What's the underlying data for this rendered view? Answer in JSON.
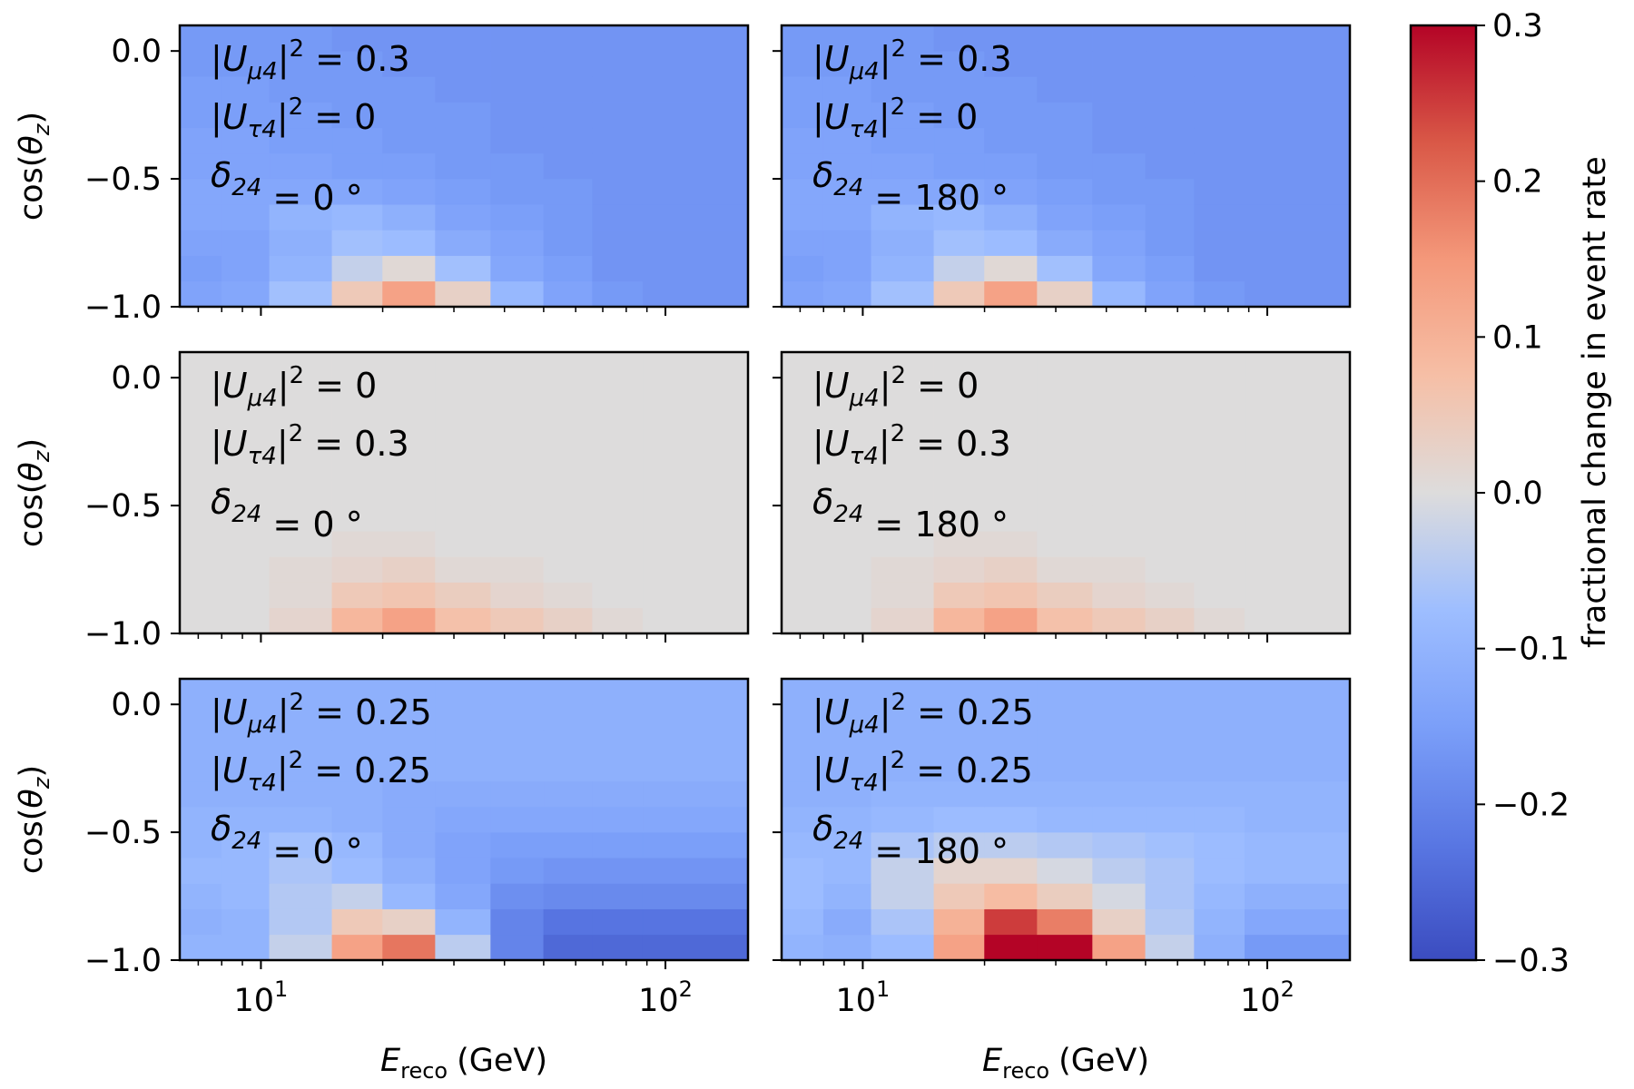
{
  "chart_data": {
    "type": "heatmap",
    "title": "",
    "colormap": "coolwarm",
    "x_axis": {
      "label_main": "E",
      "label_sub": "reco",
      "label_unit": "(GeV)",
      "scale": "log",
      "range": [
        6.3,
        160
      ],
      "tick_labels": [
        {
          "base": "10",
          "exp": "1",
          "value": 10
        },
        {
          "base": "10",
          "exp": "2",
          "value": 100
        }
      ],
      "bin_edges": [
        6.31,
        8.0,
        10.5,
        15.0,
        20.0,
        27.0,
        37.0,
        50.0,
        66.0,
        88.0,
        160.0
      ]
    },
    "y_axis": {
      "label": "cos(θz)",
      "label_text": "cos(",
      "label_theta": "θ",
      "label_z": "z",
      "label_close": ")",
      "range": [
        -1.0,
        0.1
      ],
      "tick_labels": [
        "0.0",
        "−0.5",
        "−1.0"
      ],
      "tick_values": [
        0.0,
        -0.5,
        -1.0
      ],
      "bin_edges": [
        -1.0,
        -0.9,
        -0.8,
        -0.7,
        -0.6,
        -0.5,
        -0.4,
        -0.3,
        -0.2,
        -0.1,
        0.0,
        0.1
      ]
    },
    "colorbar": {
      "label": "fractional change in event rate",
      "range": [
        -0.3,
        0.3
      ],
      "tick_values": [
        0.3,
        0.2,
        0.1,
        0.0,
        -0.1,
        -0.2,
        -0.3
      ],
      "tick_labels": [
        "0.3",
        "0.2",
        "0.1",
        "0.0",
        "−0.1",
        "−0.2",
        "−0.3"
      ]
    },
    "panels": [
      {
        "id": "row1-left",
        "lines": [
          [
            "|U",
            "μ4",
            "|",
            "2",
            " = 0.3"
          ],
          [
            "|U",
            "τ4",
            "|",
            "2",
            " = 0"
          ],
          [
            "δ",
            "24",
            "",
            "",
            " = 0 °"
          ]
        ],
        "rows_bottom_to_top": [
          [
            -0.14,
            -0.13,
            -0.07,
            0.05,
            0.13,
            0.03,
            -0.09,
            -0.14,
            -0.16,
            -0.17
          ],
          [
            -0.15,
            -0.14,
            -0.1,
            -0.03,
            0.01,
            -0.07,
            -0.13,
            -0.15,
            -0.17,
            -0.17
          ],
          [
            -0.14,
            -0.14,
            -0.11,
            -0.07,
            -0.08,
            -0.12,
            -0.14,
            -0.16,
            -0.17,
            -0.17
          ],
          [
            -0.13,
            -0.13,
            -0.1,
            -0.09,
            -0.11,
            -0.14,
            -0.15,
            -0.16,
            -0.17,
            -0.17
          ],
          [
            -0.13,
            -0.13,
            -0.13,
            -0.13,
            -0.14,
            -0.15,
            -0.16,
            -0.16,
            -0.17,
            -0.17
          ],
          [
            -0.14,
            -0.14,
            -0.14,
            -0.15,
            -0.15,
            -0.16,
            -0.16,
            -0.17,
            -0.17,
            -0.17
          ],
          [
            -0.14,
            -0.14,
            -0.15,
            -0.15,
            -0.16,
            -0.16,
            -0.17,
            -0.17,
            -0.17,
            -0.17
          ],
          [
            -0.15,
            -0.15,
            -0.15,
            -0.16,
            -0.16,
            -0.16,
            -0.17,
            -0.17,
            -0.17,
            -0.17
          ],
          [
            -0.15,
            -0.15,
            -0.16,
            -0.16,
            -0.16,
            -0.17,
            -0.17,
            -0.17,
            -0.17,
            -0.17
          ],
          [
            -0.16,
            -0.16,
            -0.16,
            -0.16,
            -0.17,
            -0.17,
            -0.17,
            -0.17,
            -0.17,
            -0.17
          ],
          [
            -0.16,
            -0.16,
            -0.16,
            -0.17,
            -0.17,
            -0.17,
            -0.17,
            -0.17,
            -0.17,
            -0.17
          ]
        ]
      },
      {
        "id": "row1-right",
        "lines": [
          [
            "|U",
            "μ4",
            "|",
            "2",
            " = 0.3"
          ],
          [
            "|U",
            "τ4",
            "|",
            "2",
            " = 0"
          ],
          [
            "δ",
            "24",
            "",
            "",
            " = 180 °"
          ]
        ],
        "rows_bottom_to_top": [
          [
            -0.14,
            -0.13,
            -0.07,
            0.05,
            0.13,
            0.03,
            -0.09,
            -0.14,
            -0.16,
            -0.17
          ],
          [
            -0.15,
            -0.14,
            -0.1,
            -0.03,
            0.01,
            -0.07,
            -0.13,
            -0.15,
            -0.17,
            -0.17
          ],
          [
            -0.14,
            -0.14,
            -0.11,
            -0.07,
            -0.08,
            -0.12,
            -0.14,
            -0.16,
            -0.17,
            -0.17
          ],
          [
            -0.13,
            -0.13,
            -0.1,
            -0.09,
            -0.11,
            -0.14,
            -0.15,
            -0.16,
            -0.17,
            -0.17
          ],
          [
            -0.13,
            -0.13,
            -0.13,
            -0.13,
            -0.14,
            -0.15,
            -0.16,
            -0.16,
            -0.17,
            -0.17
          ],
          [
            -0.14,
            -0.14,
            -0.14,
            -0.15,
            -0.15,
            -0.16,
            -0.16,
            -0.17,
            -0.17,
            -0.17
          ],
          [
            -0.14,
            -0.14,
            -0.15,
            -0.15,
            -0.16,
            -0.16,
            -0.17,
            -0.17,
            -0.17,
            -0.17
          ],
          [
            -0.15,
            -0.15,
            -0.15,
            -0.16,
            -0.16,
            -0.16,
            -0.17,
            -0.17,
            -0.17,
            -0.17
          ],
          [
            -0.15,
            -0.15,
            -0.16,
            -0.16,
            -0.16,
            -0.17,
            -0.17,
            -0.17,
            -0.17,
            -0.17
          ],
          [
            -0.16,
            -0.16,
            -0.16,
            -0.16,
            -0.17,
            -0.17,
            -0.17,
            -0.17,
            -0.17,
            -0.17
          ],
          [
            -0.16,
            -0.16,
            -0.16,
            -0.17,
            -0.17,
            -0.17,
            -0.17,
            -0.17,
            -0.17,
            -0.17
          ]
        ]
      },
      {
        "id": "row2-left",
        "lines": [
          [
            "|U",
            "μ4",
            "|",
            "2",
            " = 0"
          ],
          [
            "|U",
            "τ4",
            "|",
            "2",
            " = 0.3"
          ],
          [
            "δ",
            "24",
            "",
            "",
            " = 0 °"
          ]
        ],
        "rows_bottom_to_top": [
          [
            0.0,
            0.0,
            0.02,
            0.09,
            0.13,
            0.07,
            0.05,
            0.03,
            0.01,
            0.0
          ],
          [
            0.0,
            0.0,
            0.01,
            0.05,
            0.06,
            0.04,
            0.02,
            0.01,
            0.0,
            0.0
          ],
          [
            0.0,
            0.0,
            0.01,
            0.02,
            0.03,
            0.01,
            0.01,
            0.0,
            0.0,
            0.0
          ],
          [
            0.0,
            0.0,
            0.0,
            0.01,
            0.01,
            0.0,
            0.0,
            0.0,
            0.0,
            0.0
          ],
          [
            0.0,
            0.0,
            0.0,
            0.0,
            0.0,
            0.0,
            0.0,
            0.0,
            0.0,
            0.0
          ],
          [
            0.0,
            0.0,
            0.0,
            0.0,
            0.0,
            0.0,
            0.0,
            0.0,
            0.0,
            0.0
          ],
          [
            0.0,
            0.0,
            0.0,
            0.0,
            0.0,
            0.0,
            0.0,
            0.0,
            0.0,
            0.0
          ],
          [
            0.0,
            0.0,
            0.0,
            0.0,
            0.0,
            0.0,
            0.0,
            0.0,
            0.0,
            0.0
          ],
          [
            0.0,
            0.0,
            0.0,
            0.0,
            0.0,
            0.0,
            0.0,
            0.0,
            0.0,
            0.0
          ],
          [
            0.0,
            0.0,
            0.0,
            0.0,
            0.0,
            0.0,
            0.0,
            0.0,
            0.0,
            0.0
          ],
          [
            0.0,
            0.0,
            0.0,
            0.0,
            0.0,
            0.0,
            0.0,
            0.0,
            0.0,
            0.0
          ]
        ]
      },
      {
        "id": "row2-right",
        "lines": [
          [
            "|U",
            "μ4",
            "|",
            "2",
            " = 0"
          ],
          [
            "|U",
            "τ4",
            "|",
            "2",
            " = 0.3"
          ],
          [
            "δ",
            "24",
            "",
            "",
            " = 180 °"
          ]
        ],
        "rows_bottom_to_top": [
          [
            0.0,
            0.0,
            0.02,
            0.09,
            0.13,
            0.07,
            0.05,
            0.03,
            0.01,
            0.0
          ],
          [
            0.0,
            0.0,
            0.01,
            0.05,
            0.06,
            0.04,
            0.02,
            0.01,
            0.0,
            0.0
          ],
          [
            0.0,
            0.0,
            0.01,
            0.02,
            0.03,
            0.01,
            0.01,
            0.0,
            0.0,
            0.0
          ],
          [
            0.0,
            0.0,
            0.0,
            0.01,
            0.01,
            0.0,
            0.0,
            0.0,
            0.0,
            0.0
          ],
          [
            0.0,
            0.0,
            0.0,
            0.0,
            0.0,
            0.0,
            0.0,
            0.0,
            0.0,
            0.0
          ],
          [
            0.0,
            0.0,
            0.0,
            0.0,
            0.0,
            0.0,
            0.0,
            0.0,
            0.0,
            0.0
          ],
          [
            0.0,
            0.0,
            0.0,
            0.0,
            0.0,
            0.0,
            0.0,
            0.0,
            0.0,
            0.0
          ],
          [
            0.0,
            0.0,
            0.0,
            0.0,
            0.0,
            0.0,
            0.0,
            0.0,
            0.0,
            0.0
          ],
          [
            0.0,
            0.0,
            0.0,
            0.0,
            0.0,
            0.0,
            0.0,
            0.0,
            0.0,
            0.0
          ],
          [
            0.0,
            0.0,
            0.0,
            0.0,
            0.0,
            0.0,
            0.0,
            0.0,
            0.0,
            0.0
          ],
          [
            0.0,
            0.0,
            0.0,
            0.0,
            0.0,
            0.0,
            0.0,
            0.0,
            0.0,
            0.0
          ]
        ]
      },
      {
        "id": "row3-left",
        "lines": [
          [
            "|U",
            "μ4",
            "|",
            "2",
            " = 0.25"
          ],
          [
            "|U",
            "τ4",
            "|",
            "2",
            " = 0.25"
          ],
          [
            "δ",
            "24",
            "",
            "",
            " = 0 °"
          ]
        ],
        "rows_bottom_to_top": [
          [
            -0.1,
            -0.1,
            -0.03,
            0.13,
            0.19,
            -0.04,
            -0.2,
            -0.25,
            -0.25,
            -0.25
          ],
          [
            -0.11,
            -0.1,
            -0.05,
            0.05,
            0.03,
            -0.1,
            -0.2,
            -0.23,
            -0.23,
            -0.23
          ],
          [
            -0.1,
            -0.09,
            -0.05,
            -0.03,
            -0.09,
            -0.13,
            -0.18,
            -0.19,
            -0.19,
            -0.19
          ],
          [
            -0.09,
            -0.09,
            -0.06,
            -0.08,
            -0.11,
            -0.14,
            -0.16,
            -0.17,
            -0.17,
            -0.17
          ],
          [
            -0.1,
            -0.09,
            -0.07,
            -0.09,
            -0.12,
            -0.14,
            -0.15,
            -0.15,
            -0.15,
            -0.15
          ],
          [
            -0.1,
            -0.1,
            -0.1,
            -0.11,
            -0.12,
            -0.13,
            -0.13,
            -0.13,
            -0.13,
            -0.13
          ],
          [
            -0.11,
            -0.11,
            -0.11,
            -0.11,
            -0.12,
            -0.12,
            -0.12,
            -0.12,
            -0.12,
            -0.12
          ],
          [
            -0.11,
            -0.11,
            -0.11,
            -0.11,
            -0.11,
            -0.11,
            -0.11,
            -0.11,
            -0.11,
            -0.11
          ],
          [
            -0.11,
            -0.11,
            -0.11,
            -0.11,
            -0.11,
            -0.11,
            -0.11,
            -0.11,
            -0.11,
            -0.11
          ],
          [
            -0.11,
            -0.11,
            -0.11,
            -0.11,
            -0.11,
            -0.11,
            -0.11,
            -0.11,
            -0.11,
            -0.11
          ],
          [
            -0.11,
            -0.11,
            -0.11,
            -0.11,
            -0.11,
            -0.11,
            -0.11,
            -0.11,
            -0.11,
            -0.11
          ]
        ]
      },
      {
        "id": "row3-right",
        "lines": [
          [
            "|U",
            "μ4",
            "|",
            "2",
            " = 0.25"
          ],
          [
            "|U",
            "τ4",
            "|",
            "2",
            " = 0.25"
          ],
          [
            "δ",
            "24",
            "",
            "",
            " = 180 °"
          ]
        ],
        "rows_bottom_to_top": [
          [
            -0.1,
            -0.11,
            -0.08,
            0.13,
            0.3,
            0.3,
            0.13,
            -0.03,
            -0.11,
            -0.16
          ],
          [
            -0.09,
            -0.12,
            -0.06,
            0.1,
            0.25,
            0.18,
            0.03,
            -0.05,
            -0.1,
            -0.13
          ],
          [
            -0.08,
            -0.1,
            -0.03,
            0.05,
            0.08,
            0.04,
            -0.01,
            -0.06,
            -0.09,
            -0.11
          ],
          [
            -0.08,
            -0.09,
            -0.03,
            0.02,
            0.02,
            -0.01,
            -0.04,
            -0.06,
            -0.08,
            -0.09
          ],
          [
            -0.09,
            -0.09,
            -0.06,
            -0.04,
            -0.04,
            -0.05,
            -0.06,
            -0.07,
            -0.08,
            -0.09
          ],
          [
            -0.1,
            -0.1,
            -0.09,
            -0.08,
            -0.08,
            -0.09,
            -0.09,
            -0.09,
            -0.09,
            -0.1
          ],
          [
            -0.11,
            -0.11,
            -0.1,
            -0.1,
            -0.1,
            -0.1,
            -0.1,
            -0.1,
            -0.1,
            -0.1
          ],
          [
            -0.11,
            -0.11,
            -0.11,
            -0.11,
            -0.11,
            -0.11,
            -0.11,
            -0.11,
            -0.11,
            -0.11
          ],
          [
            -0.11,
            -0.11,
            -0.11,
            -0.11,
            -0.11,
            -0.11,
            -0.11,
            -0.11,
            -0.11,
            -0.11
          ],
          [
            -0.11,
            -0.11,
            -0.11,
            -0.11,
            -0.11,
            -0.11,
            -0.11,
            -0.11,
            -0.11,
            -0.11
          ],
          [
            -0.11,
            -0.11,
            -0.11,
            -0.11,
            -0.11,
            -0.11,
            -0.11,
            -0.11,
            -0.11,
            -0.11
          ]
        ]
      }
    ]
  }
}
